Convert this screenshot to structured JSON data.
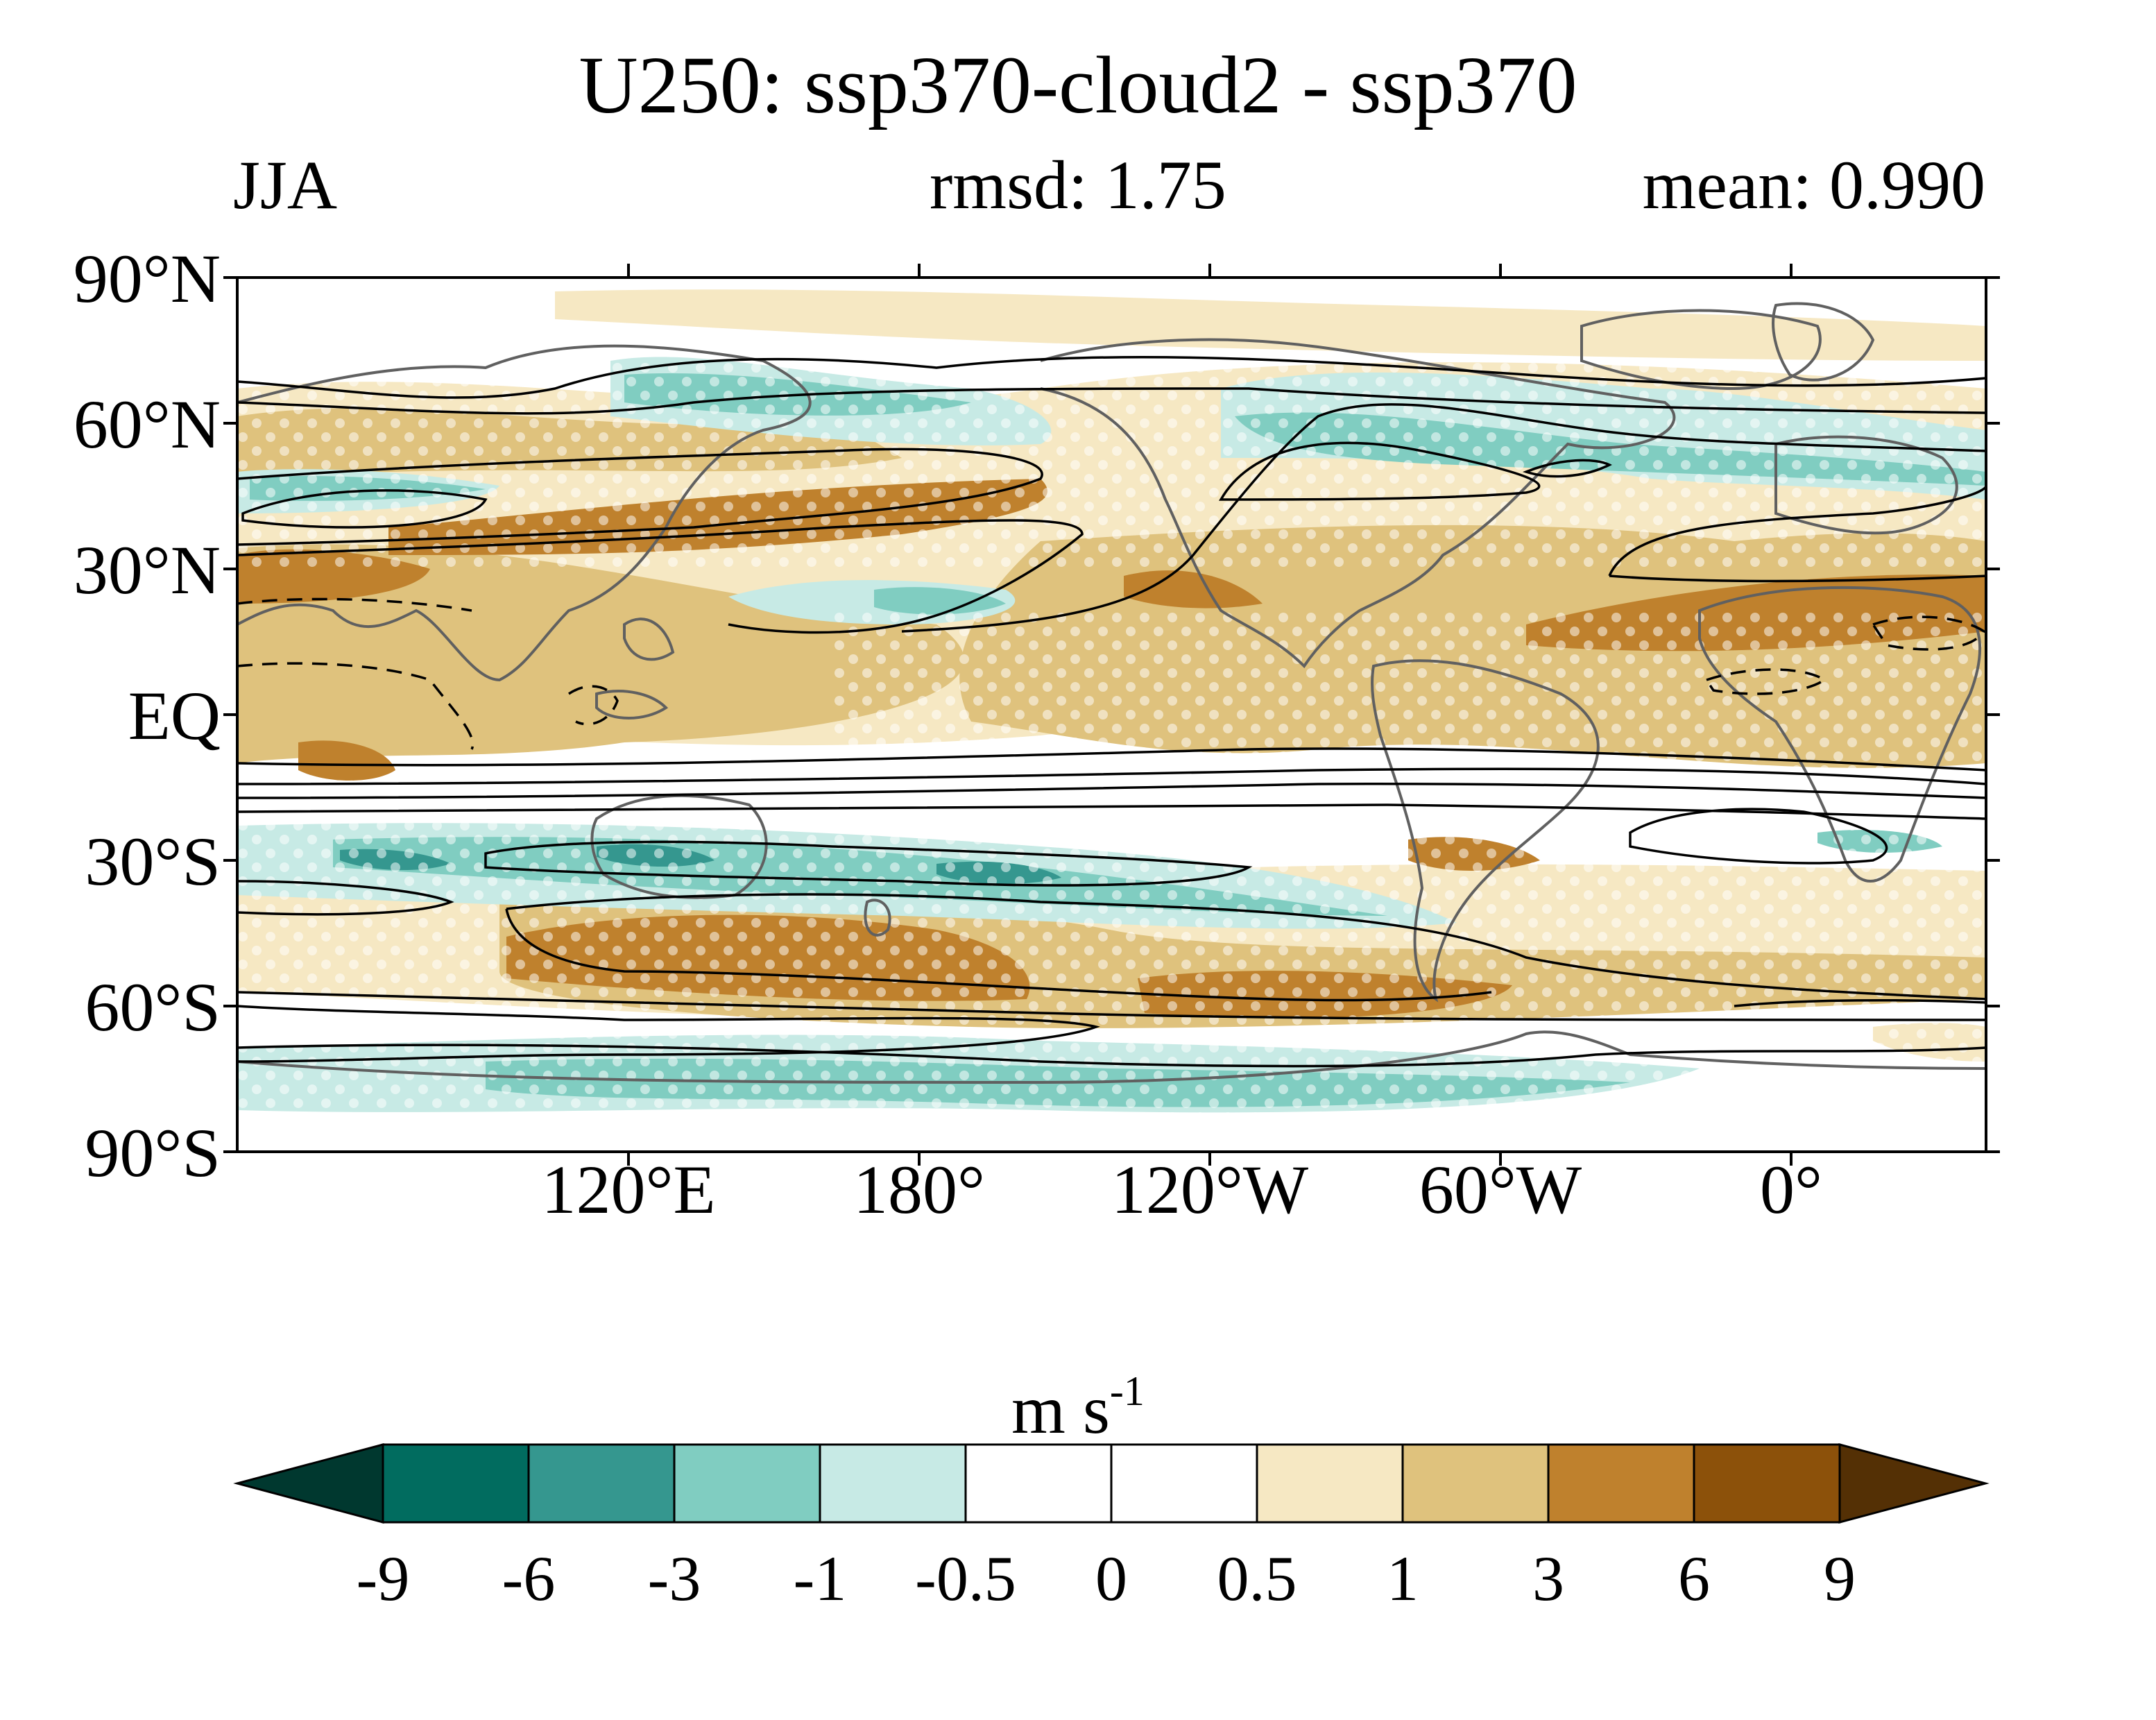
{
  "title": "U250: ssp370-cloud2 - ssp370",
  "season": "JJA",
  "rmsd_text": "rmsd: 1.75",
  "mean_text": "mean: 0.990",
  "lat_labels": [
    "90°N",
    "60°N",
    "30°N",
    "EQ",
    "30°S",
    "60°S",
    "90°S"
  ],
  "lon_labels": [
    "120°E",
    "180°",
    "120°W",
    "60°W",
    "0°"
  ],
  "units_base": "m s",
  "units_exp": "-1",
  "colorbar": {
    "levels": [
      "-9",
      "-6",
      "-3",
      "-1",
      "-0.5",
      "0",
      "0.5",
      "1",
      "3",
      "6",
      "9"
    ],
    "colors": [
      "#00382f",
      "#016c5f",
      "#35978f",
      "#80cdc1",
      "#c7eae5",
      "#ffffff",
      "#ffffff",
      "#f6e8c3",
      "#dfc27d",
      "#bf812d",
      "#8c510a",
      "#543005"
    ]
  },
  "map": {
    "projection": "equirectangular",
    "stippling": "white dots mark significant differences",
    "contour_style": "black lines; dashed negative"
  }
}
